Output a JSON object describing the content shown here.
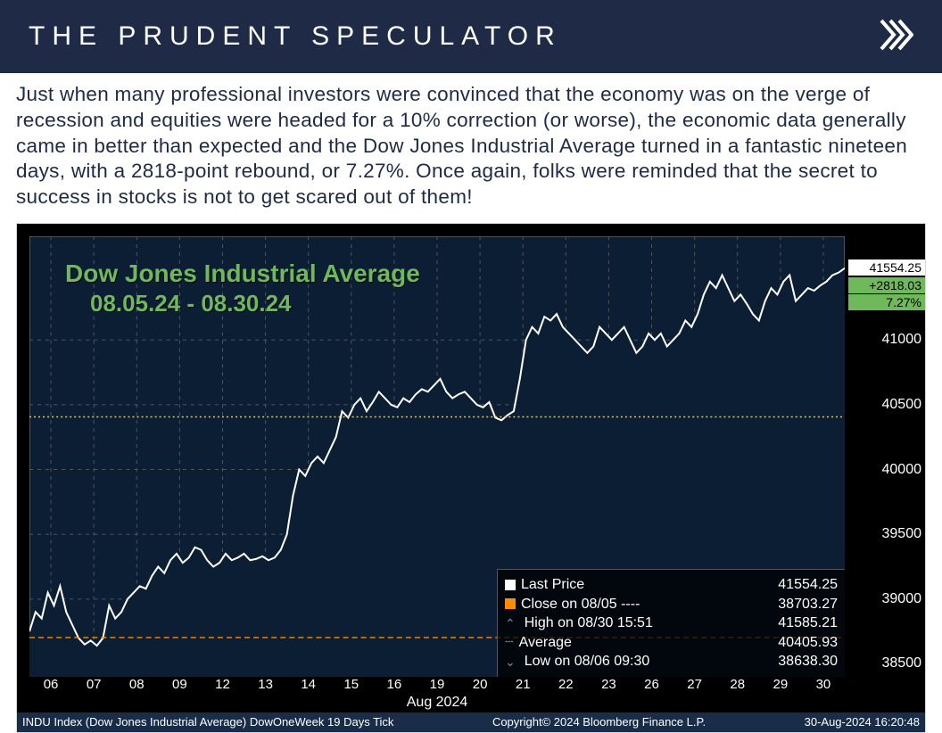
{
  "header": {
    "title": "THE PRUDENT SPECULATOR"
  },
  "intro_text": "Just when many professional investors were convinced that the economy was on the verge of recession and equities were headed for a 10% correction (or worse), the economic data generally came in better than expected and the Dow Jones Industrial Average turned in a fantastic nineteen days, with a 2818-point rebound, or 7.27%. Once again, folks were reminded that the secret to success in stocks is not to get scared out of them!",
  "chart": {
    "type": "line-area",
    "title_line1": "Dow Jones Industrial Average",
    "title_line2": "08.05.24 - 08.30.24",
    "title_color": "#6fb95c",
    "background_color": "#000000",
    "plot_bg_color": "#0b1e34",
    "line_color": "#ffffff",
    "fill_color": "#0b1e34",
    "grid_color": "#555555",
    "avg_line_color": "#ffcc00",
    "close_line_color": "#ff8c00",
    "x_label": "Aug 2024",
    "x_ticks": [
      "06",
      "07",
      "08",
      "09",
      "12",
      "13",
      "14",
      "15",
      "16",
      "19",
      "20",
      "21",
      "22",
      "23",
      "26",
      "27",
      "28",
      "29",
      "30"
    ],
    "y_ticks": [
      38500,
      39000,
      39500,
      40000,
      40500,
      41000
    ],
    "ylim": [
      38400,
      41800
    ],
    "end_price": "41554.25",
    "end_change": "+2818.03",
    "end_pct": "7.27%",
    "legend": {
      "last_price_label": "Last Price",
      "last_price_value": "41554.25",
      "close_label": "Close on 08/05 ----",
      "close_value": "38703.27",
      "high_label": "High on 08/30 15:51",
      "high_value": "41585.21",
      "avg_label": "Average",
      "avg_value": "40405.93",
      "low_label": "Low on 08/06 09:30",
      "low_value": "38638.30"
    },
    "footer_left": "INDU Index (Dow Jones Industrial Average) DowOneWeek 19 Days  Tick",
    "footer_center": "Copyright© 2024 Bloomberg Finance L.P.",
    "footer_right": "30-Aug-2024 16:20:48",
    "avg_value": 40405.93,
    "close_value": 38703.27,
    "series": [
      38750,
      38900,
      38850,
      39050,
      38950,
      39100,
      38900,
      38800,
      38700,
      38650,
      38680,
      38640,
      38700,
      38950,
      38850,
      38900,
      39000,
      39050,
      39100,
      39080,
      39180,
      39250,
      39200,
      39300,
      39350,
      39280,
      39320,
      39400,
      39380,
      39300,
      39250,
      39280,
      39350,
      39300,
      39320,
      39350,
      39300,
      39310,
      39330,
      39300,
      39320,
      39380,
      39500,
      39800,
      40000,
      39950,
      40050,
      40100,
      40050,
      40150,
      40250,
      40450,
      40400,
      40500,
      40550,
      40450,
      40520,
      40600,
      40550,
      40500,
      40480,
      40550,
      40520,
      40580,
      40620,
      40600,
      40650,
      40700,
      40600,
      40550,
      40580,
      40600,
      40550,
      40500,
      40480,
      40520,
      40400,
      40380,
      40420,
      40450,
      40700,
      41000,
      41100,
      41050,
      41180,
      41150,
      41200,
      41100,
      41050,
      41000,
      40950,
      40900,
      40950,
      41100,
      41050,
      41000,
      41050,
      41100,
      41000,
      40900,
      40950,
      41050,
      41000,
      41050,
      40950,
      41000,
      41050,
      41150,
      41100,
      41200,
      41350,
      41450,
      41400,
      41500,
      41400,
      41300,
      41350,
      41280,
      41200,
      41150,
      41300,
      41400,
      41350,
      41450,
      41500,
      41300,
      41350,
      41400,
      41380,
      41420,
      41450,
      41500,
      41520,
      41554
    ]
  }
}
